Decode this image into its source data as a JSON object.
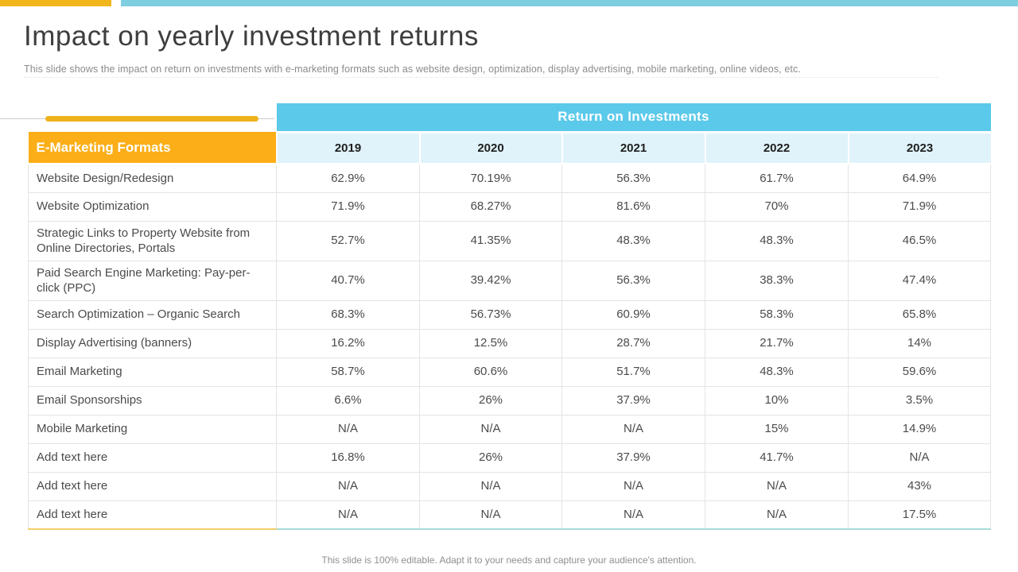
{
  "colors": {
    "top_bar_yellow": "#F0B61C",
    "top_bar_blue": "#7FCEDF",
    "accent_capsule_yellow": "#EEB31B",
    "row_header_orange": "#FBAE17",
    "group_header_blue": "#5BC9EA",
    "year_cell_light_blue": "#E0F3FA",
    "bottom_border_yellow": "#F3CE6B",
    "bottom_border_teal": "#A8DBD8"
  },
  "header": {
    "title": "Impact on yearly investment returns",
    "subtitle": "This slide shows the impact on return on investments with e-marketing formats such as website design, optimization, display advertising, mobile marketing, online videos, etc."
  },
  "table": {
    "group_header": "Return on Investments",
    "row_header_label": "E-Marketing Formats",
    "years": [
      "2019",
      "2020",
      "2021",
      "2022",
      "2023"
    ],
    "rows": [
      {
        "label": "Website Design/Redesign",
        "values": [
          "62.9%",
          "70.19%",
          "56.3%",
          "61.7%",
          "64.9%"
        ]
      },
      {
        "label": "Website Optimization",
        "values": [
          "71.9%",
          "68.27%",
          "81.6%",
          "70%",
          "71.9%"
        ]
      },
      {
        "label": "Strategic Links to Property Website from Online Directories, Portals",
        "values": [
          "52.7%",
          "41.35%",
          "48.3%",
          "48.3%",
          "46.5%"
        ]
      },
      {
        "label": "Paid Search Engine Marketing: Pay-per-click (PPC)",
        "values": [
          "40.7%",
          "39.42%",
          "56.3%",
          "38.3%",
          "47.4%"
        ]
      },
      {
        "label": "Search Optimization – Organic Search",
        "values": [
          "68.3%",
          "56.73%",
          "60.9%",
          "58.3%",
          "65.8%"
        ]
      },
      {
        "label": "Display Advertising (banners)",
        "values": [
          "16.2%",
          "12.5%",
          "28.7%",
          "21.7%",
          "14%"
        ]
      },
      {
        "label": "Email Marketing",
        "values": [
          "58.7%",
          "60.6%",
          "51.7%",
          "48.3%",
          "59.6%"
        ]
      },
      {
        "label": "Email Sponsorships",
        "values": [
          "6.6%",
          "26%",
          "37.9%",
          "10%",
          "3.5%"
        ]
      },
      {
        "label": "Mobile Marketing",
        "values": [
          "N/A",
          "N/A",
          "N/A",
          "15%",
          "14.9%"
        ]
      },
      {
        "label": "Add text here",
        "values": [
          "16.8%",
          "26%",
          "37.9%",
          "41.7%",
          "N/A"
        ]
      },
      {
        "label": "Add text here",
        "values": [
          "N/A",
          "N/A",
          "N/A",
          "N/A",
          "43%"
        ]
      },
      {
        "label": "Add text here",
        "values": [
          "N/A",
          "N/A",
          "N/A",
          "N/A",
          "17.5%"
        ]
      }
    ]
  },
  "footer": {
    "note": "This slide is 100% editable. Adapt it to your needs and capture your audience's attention."
  }
}
